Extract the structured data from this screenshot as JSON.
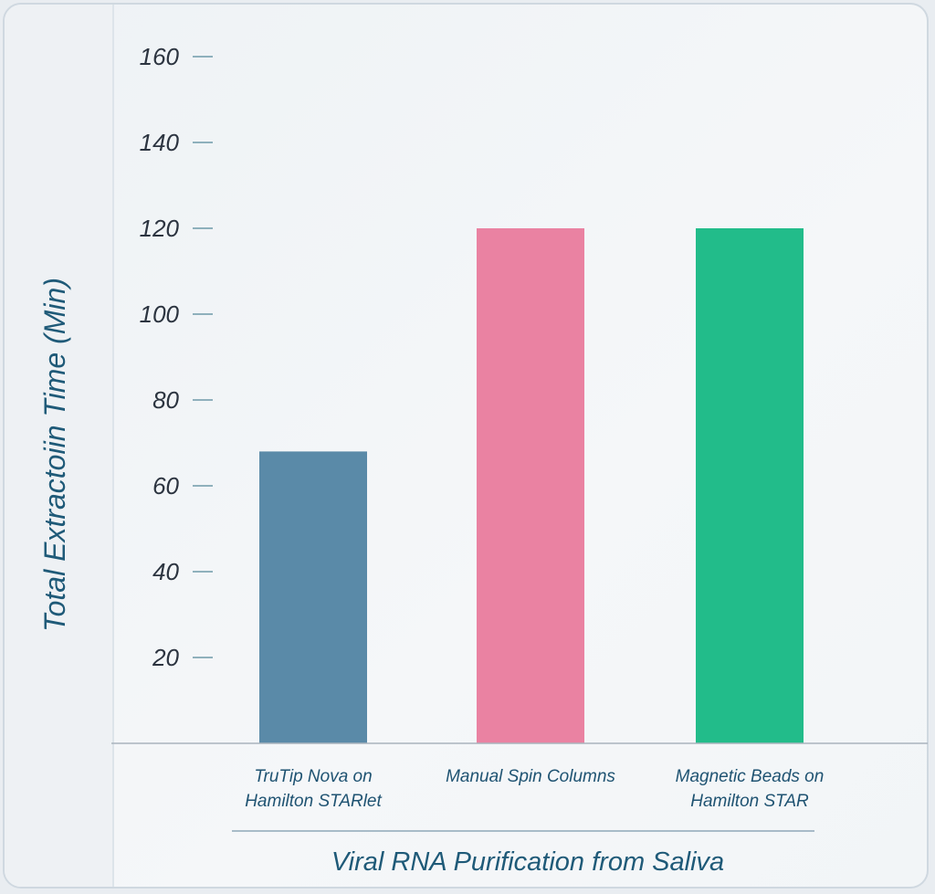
{
  "chart_data": {
    "type": "bar",
    "categories": [
      [
        "TruTip Nova on",
        "Hamilton STARlet"
      ],
      [
        "Manual Spin Columns"
      ],
      [
        "Magnetic Beads on",
        "Hamilton STAR"
      ]
    ],
    "values": [
      68,
      120,
      120
    ],
    "colors": [
      "#5a8aa8",
      "#ea82a2",
      "#22bc8a"
    ],
    "xlabel": "Viral RNA Purification from Saliva",
    "ylabel": "Total Extractoiin Time (Min)",
    "yticks": [
      20,
      40,
      60,
      80,
      100,
      120,
      140,
      160
    ],
    "ylim": [
      0,
      160
    ],
    "grid": false,
    "legend": "none"
  }
}
